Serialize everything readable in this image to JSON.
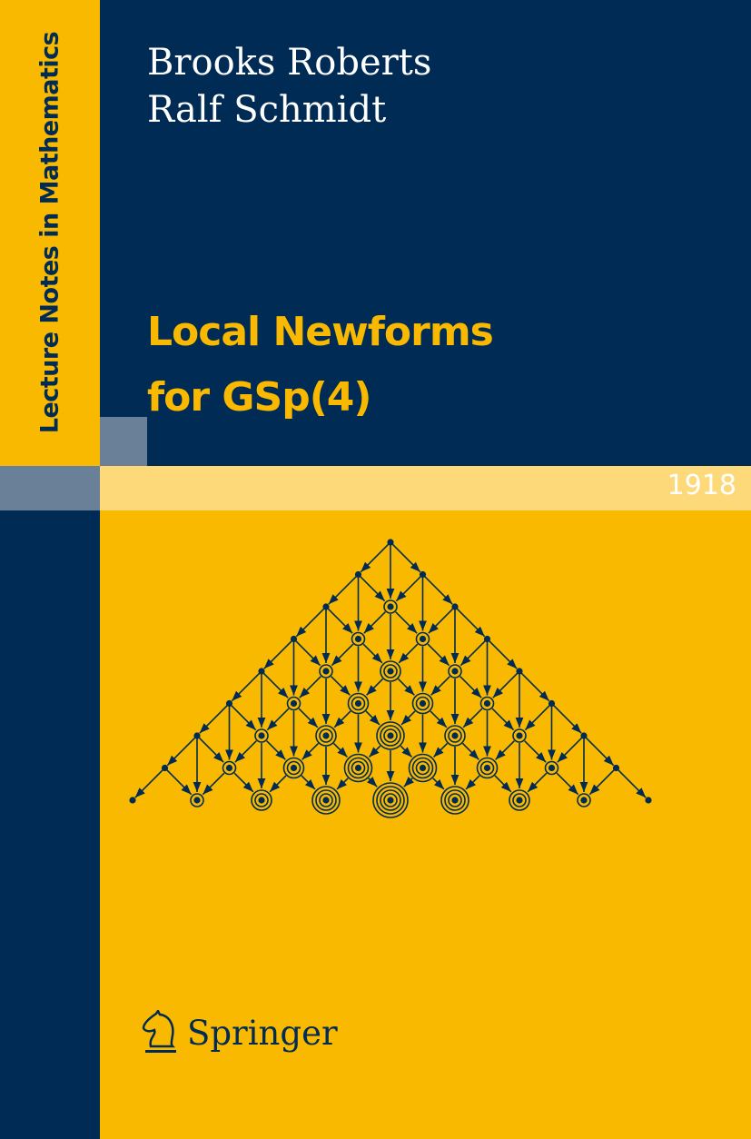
{
  "series": "Lecture Notes in Mathematics",
  "volume": "1918",
  "authors": [
    "Brooks Roberts",
    "Ralf Schmidt"
  ],
  "title_lines": [
    "Local Newforms",
    "for GSp(4)"
  ],
  "publisher": "Springer",
  "colors": {
    "navy": "#002b54",
    "yellow": "#f9b900",
    "light_yellow": "#fdd97a",
    "slate": "#6a7f98"
  },
  "diagram": {
    "levels": 9
  },
  "icons": {
    "publisher_logo": "chess-knight-icon"
  }
}
